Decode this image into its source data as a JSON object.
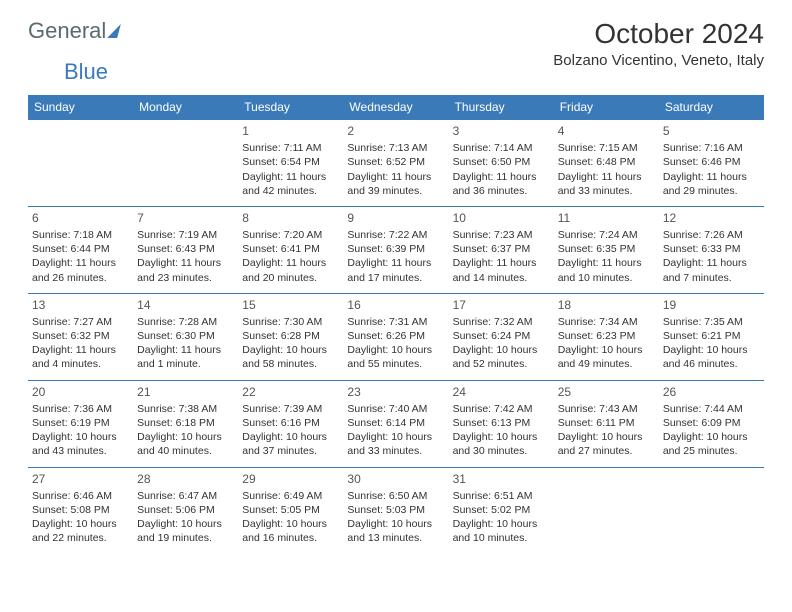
{
  "logo": {
    "text1": "General",
    "text2": "Blue"
  },
  "title": "October 2024",
  "location": "Bolzano Vicentino, Veneto, Italy",
  "colors": {
    "header_bg": "#3a7ab8",
    "header_fg": "#ffffff",
    "border": "#3a7ab8",
    "text": "#333333",
    "logo_gray": "#5a6a72",
    "logo_blue": "#3a7ab8",
    "background": "#ffffff"
  },
  "dayNames": [
    "Sunday",
    "Monday",
    "Tuesday",
    "Wednesday",
    "Thursday",
    "Friday",
    "Saturday"
  ],
  "leadingBlanks": 2,
  "days": [
    {
      "n": "1",
      "sunrise": "Sunrise: 7:11 AM",
      "sunset": "Sunset: 6:54 PM",
      "daylight": "Daylight: 11 hours and 42 minutes."
    },
    {
      "n": "2",
      "sunrise": "Sunrise: 7:13 AM",
      "sunset": "Sunset: 6:52 PM",
      "daylight": "Daylight: 11 hours and 39 minutes."
    },
    {
      "n": "3",
      "sunrise": "Sunrise: 7:14 AM",
      "sunset": "Sunset: 6:50 PM",
      "daylight": "Daylight: 11 hours and 36 minutes."
    },
    {
      "n": "4",
      "sunrise": "Sunrise: 7:15 AM",
      "sunset": "Sunset: 6:48 PM",
      "daylight": "Daylight: 11 hours and 33 minutes."
    },
    {
      "n": "5",
      "sunrise": "Sunrise: 7:16 AM",
      "sunset": "Sunset: 6:46 PM",
      "daylight": "Daylight: 11 hours and 29 minutes."
    },
    {
      "n": "6",
      "sunrise": "Sunrise: 7:18 AM",
      "sunset": "Sunset: 6:44 PM",
      "daylight": "Daylight: 11 hours and 26 minutes."
    },
    {
      "n": "7",
      "sunrise": "Sunrise: 7:19 AM",
      "sunset": "Sunset: 6:43 PM",
      "daylight": "Daylight: 11 hours and 23 minutes."
    },
    {
      "n": "8",
      "sunrise": "Sunrise: 7:20 AM",
      "sunset": "Sunset: 6:41 PM",
      "daylight": "Daylight: 11 hours and 20 minutes."
    },
    {
      "n": "9",
      "sunrise": "Sunrise: 7:22 AM",
      "sunset": "Sunset: 6:39 PM",
      "daylight": "Daylight: 11 hours and 17 minutes."
    },
    {
      "n": "10",
      "sunrise": "Sunrise: 7:23 AM",
      "sunset": "Sunset: 6:37 PM",
      "daylight": "Daylight: 11 hours and 14 minutes."
    },
    {
      "n": "11",
      "sunrise": "Sunrise: 7:24 AM",
      "sunset": "Sunset: 6:35 PM",
      "daylight": "Daylight: 11 hours and 10 minutes."
    },
    {
      "n": "12",
      "sunrise": "Sunrise: 7:26 AM",
      "sunset": "Sunset: 6:33 PM",
      "daylight": "Daylight: 11 hours and 7 minutes."
    },
    {
      "n": "13",
      "sunrise": "Sunrise: 7:27 AM",
      "sunset": "Sunset: 6:32 PM",
      "daylight": "Daylight: 11 hours and 4 minutes."
    },
    {
      "n": "14",
      "sunrise": "Sunrise: 7:28 AM",
      "sunset": "Sunset: 6:30 PM",
      "daylight": "Daylight: 11 hours and 1 minute."
    },
    {
      "n": "15",
      "sunrise": "Sunrise: 7:30 AM",
      "sunset": "Sunset: 6:28 PM",
      "daylight": "Daylight: 10 hours and 58 minutes."
    },
    {
      "n": "16",
      "sunrise": "Sunrise: 7:31 AM",
      "sunset": "Sunset: 6:26 PM",
      "daylight": "Daylight: 10 hours and 55 minutes."
    },
    {
      "n": "17",
      "sunrise": "Sunrise: 7:32 AM",
      "sunset": "Sunset: 6:24 PM",
      "daylight": "Daylight: 10 hours and 52 minutes."
    },
    {
      "n": "18",
      "sunrise": "Sunrise: 7:34 AM",
      "sunset": "Sunset: 6:23 PM",
      "daylight": "Daylight: 10 hours and 49 minutes."
    },
    {
      "n": "19",
      "sunrise": "Sunrise: 7:35 AM",
      "sunset": "Sunset: 6:21 PM",
      "daylight": "Daylight: 10 hours and 46 minutes."
    },
    {
      "n": "20",
      "sunrise": "Sunrise: 7:36 AM",
      "sunset": "Sunset: 6:19 PM",
      "daylight": "Daylight: 10 hours and 43 minutes."
    },
    {
      "n": "21",
      "sunrise": "Sunrise: 7:38 AM",
      "sunset": "Sunset: 6:18 PM",
      "daylight": "Daylight: 10 hours and 40 minutes."
    },
    {
      "n": "22",
      "sunrise": "Sunrise: 7:39 AM",
      "sunset": "Sunset: 6:16 PM",
      "daylight": "Daylight: 10 hours and 37 minutes."
    },
    {
      "n": "23",
      "sunrise": "Sunrise: 7:40 AM",
      "sunset": "Sunset: 6:14 PM",
      "daylight": "Daylight: 10 hours and 33 minutes."
    },
    {
      "n": "24",
      "sunrise": "Sunrise: 7:42 AM",
      "sunset": "Sunset: 6:13 PM",
      "daylight": "Daylight: 10 hours and 30 minutes."
    },
    {
      "n": "25",
      "sunrise": "Sunrise: 7:43 AM",
      "sunset": "Sunset: 6:11 PM",
      "daylight": "Daylight: 10 hours and 27 minutes."
    },
    {
      "n": "26",
      "sunrise": "Sunrise: 7:44 AM",
      "sunset": "Sunset: 6:09 PM",
      "daylight": "Daylight: 10 hours and 25 minutes."
    },
    {
      "n": "27",
      "sunrise": "Sunrise: 6:46 AM",
      "sunset": "Sunset: 5:08 PM",
      "daylight": "Daylight: 10 hours and 22 minutes."
    },
    {
      "n": "28",
      "sunrise": "Sunrise: 6:47 AM",
      "sunset": "Sunset: 5:06 PM",
      "daylight": "Daylight: 10 hours and 19 minutes."
    },
    {
      "n": "29",
      "sunrise": "Sunrise: 6:49 AM",
      "sunset": "Sunset: 5:05 PM",
      "daylight": "Daylight: 10 hours and 16 minutes."
    },
    {
      "n": "30",
      "sunrise": "Sunrise: 6:50 AM",
      "sunset": "Sunset: 5:03 PM",
      "daylight": "Daylight: 10 hours and 13 minutes."
    },
    {
      "n": "31",
      "sunrise": "Sunrise: 6:51 AM",
      "sunset": "Sunset: 5:02 PM",
      "daylight": "Daylight: 10 hours and 10 minutes."
    }
  ]
}
